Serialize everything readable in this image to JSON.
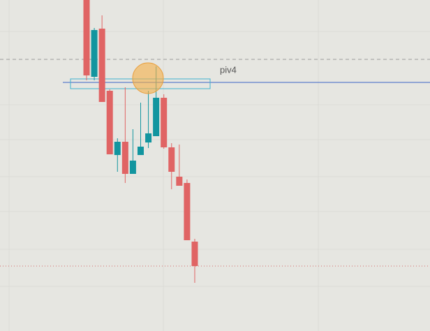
{
  "chart_data": {
    "type": "candlestick",
    "categories": [
      null,
      null,
      null,
      null,
      null,
      null,
      null,
      null,
      null,
      null,
      null,
      null,
      null,
      null,
      null
    ],
    "open": [
      474,
      364,
      433,
      344,
      252,
      271,
      225,
      252,
      270,
      279,
      334,
      263,
      221,
      212,
      128
    ],
    "high": [
      474,
      434,
      452,
      346,
      276,
      349,
      289,
      327,
      344,
      379,
      339,
      269,
      267,
      217,
      132
    ],
    "low": [
      359,
      359,
      328,
      253,
      228,
      212,
      225,
      252,
      262,
      279,
      261,
      203,
      208,
      130,
      69
    ],
    "close": [
      366,
      431,
      328,
      253,
      271,
      225,
      244,
      264,
      283,
      334,
      263,
      228,
      208,
      130,
      93
    ],
    "up_color": "#12959f",
    "down_color": "#e06464",
    "ylim": [
      0,
      474
    ],
    "lines": [
      {
        "value": 389,
        "color": "#9a9a9a",
        "style": "dashed"
      },
      {
        "value": 356,
        "color": "#3a63c8",
        "style": "solid"
      },
      {
        "value": 93,
        "color": "#d46a6a",
        "style": "dotted"
      }
    ],
    "pivot": {
      "label": "piv4",
      "top": 361,
      "bottom": 347,
      "color": "#3fb3cf"
    }
  }
}
